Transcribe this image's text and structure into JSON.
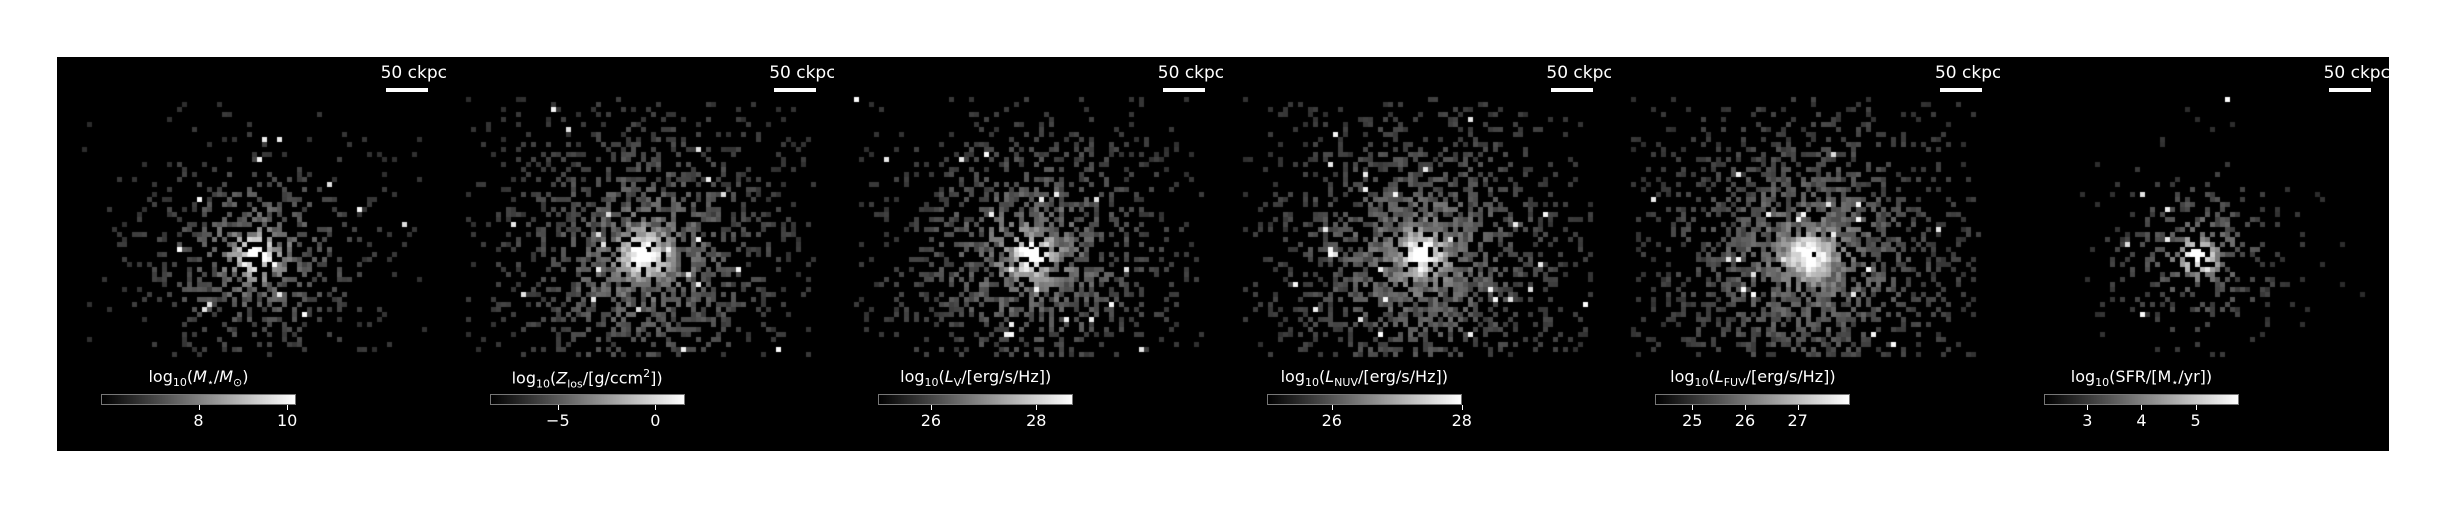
{
  "scale_bar_label": "50 ckpc",
  "colormap": "gray",
  "panels": [
    {
      "quantity": "stellar_mass",
      "colorbar_label_parts": [
        "log",
        "10",
        "(",
        "M",
        "⋆",
        "/",
        "M",
        "⊙",
        ")"
      ],
      "colorbar_label_text": "log10(M⋆/M⊙)",
      "colorbar_range": [
        5.8,
        10.2
      ],
      "ticks": [
        {
          "value": 8,
          "label": "8"
        },
        {
          "value": 10,
          "label": "10"
        }
      ],
      "concentration": 0.55,
      "spread": 0.55,
      "density": 0.6
    },
    {
      "quantity": "metal_column_density",
      "colorbar_label_text": "log10(Zlos/[g/ccm2])",
      "colorbar_range": [
        -8.5,
        1.5
      ],
      "ticks": [
        {
          "value": -5,
          "label": "−5"
        },
        {
          "value": 0,
          "label": "0"
        }
      ],
      "concentration": 0.4,
      "spread": 0.75,
      "density": 0.85
    },
    {
      "quantity": "luminosity_V",
      "colorbar_label_text": "log10(LV/[erg/s/Hz])",
      "colorbar_range": [
        25.0,
        28.7
      ],
      "ticks": [
        {
          "value": 26,
          "label": "26"
        },
        {
          "value": 28,
          "label": "28"
        }
      ],
      "concentration": 0.5,
      "spread": 0.75,
      "density": 0.75
    },
    {
      "quantity": "luminosity_NUV",
      "colorbar_label_text": "log10(LNUV/[erg/s/Hz])",
      "colorbar_range": [
        25.0,
        28.0
      ],
      "ticks": [
        {
          "value": 26,
          "label": "26"
        },
        {
          "value": 28,
          "label": "28"
        }
      ],
      "concentration": 0.45,
      "spread": 0.8,
      "density": 0.85
    },
    {
      "quantity": "luminosity_FUV",
      "colorbar_label_text": "log10(LFUV/[erg/s/Hz])",
      "colorbar_range": [
        24.3,
        28.0
      ],
      "ticks": [
        {
          "value": 25,
          "label": "25"
        },
        {
          "value": 26,
          "label": "26"
        },
        {
          "value": 27,
          "label": "27"
        }
      ],
      "concentration": 0.45,
      "spread": 0.8,
      "density": 0.9
    },
    {
      "quantity": "sfr",
      "colorbar_label_text": "log10(SFR/[M⋆/yr])",
      "colorbar_range": [
        2.2,
        5.8
      ],
      "ticks": [
        {
          "value": 3,
          "label": "3"
        },
        {
          "value": 4,
          "label": "4"
        },
        {
          "value": 5,
          "label": "5"
        }
      ],
      "concentration": 0.8,
      "spread": 0.35,
      "density": 0.55
    }
  ]
}
